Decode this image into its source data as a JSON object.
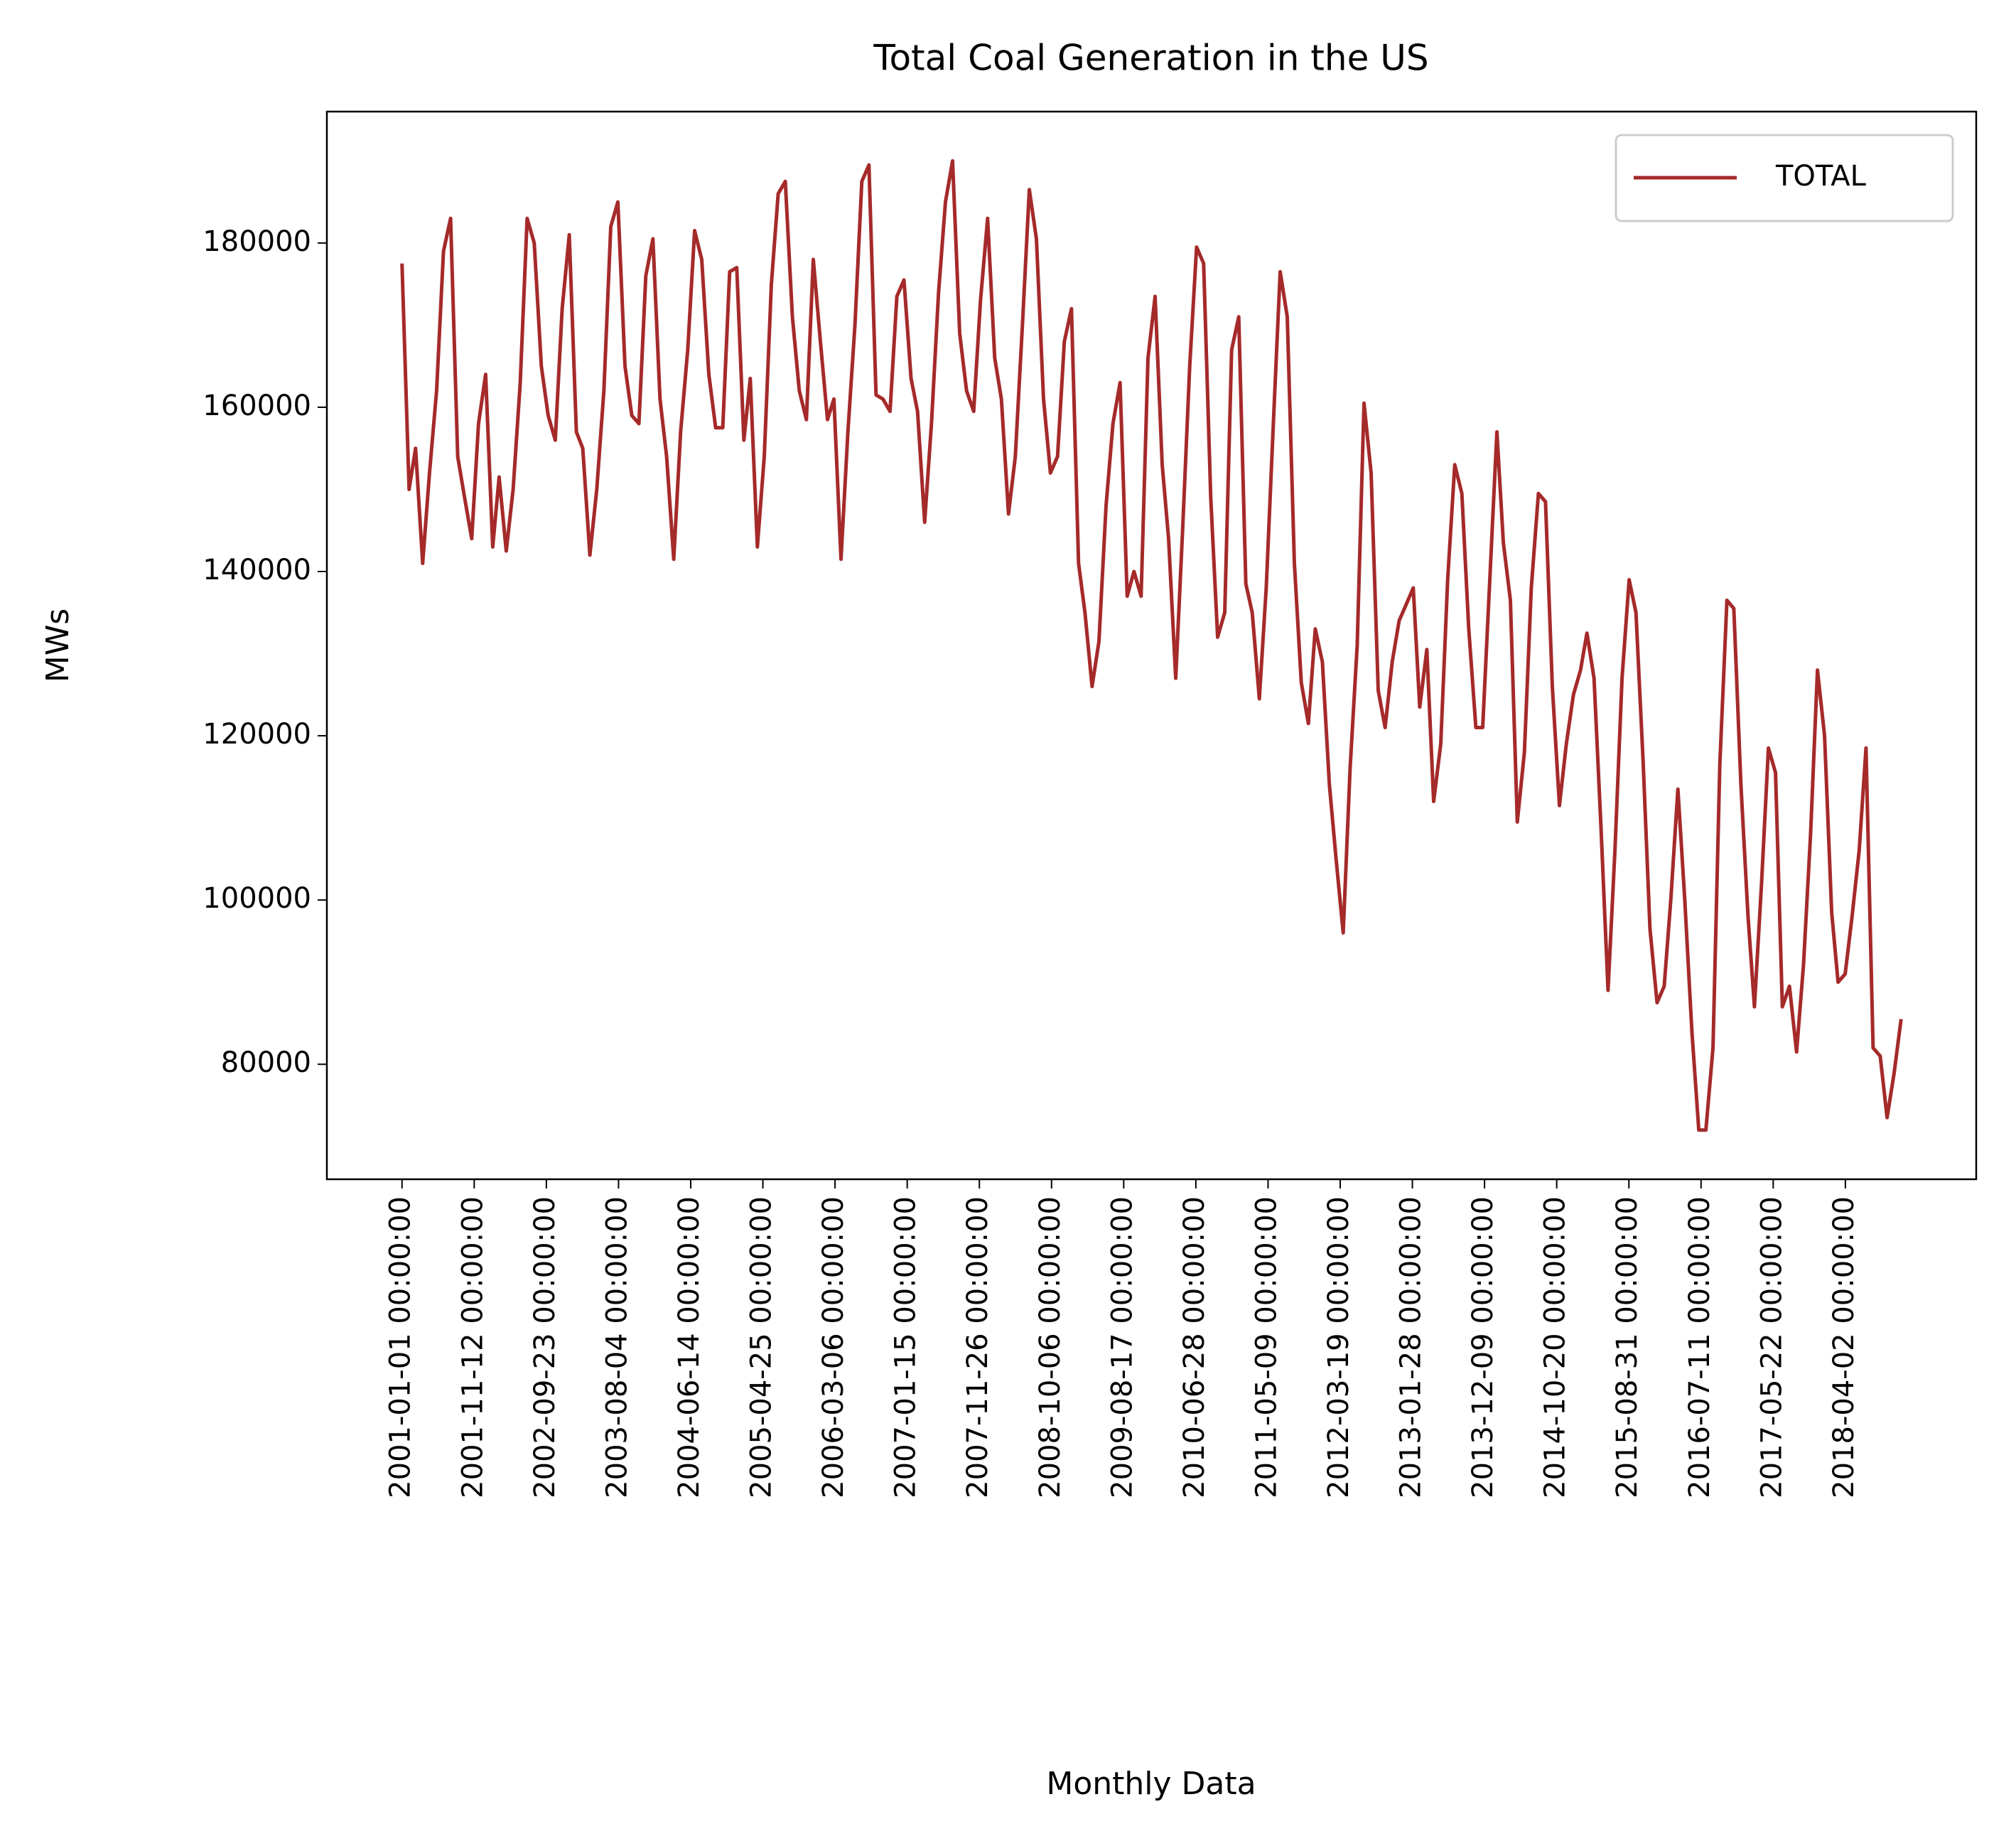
{
  "chart_data": {
    "type": "line",
    "title": "Total Coal Generation in the US",
    "xlabel": "Monthly Data",
    "ylabel": "MWs",
    "x": [
      "2001-01-01",
      "2001-02-01",
      "2001-03-01",
      "2001-04-01",
      "2001-05-01",
      "2001-06-01",
      "2001-07-01",
      "2001-08-01",
      "2001-09-01",
      "2001-10-01",
      "2001-11-01",
      "2001-12-01",
      "2002-01-01",
      "2002-02-01",
      "2002-03-01",
      "2002-04-01",
      "2002-05-01",
      "2002-06-01",
      "2002-07-01",
      "2002-08-01",
      "2002-09-01",
      "2002-10-01",
      "2002-11-01",
      "2002-12-01",
      "2003-01-01",
      "2003-02-01",
      "2003-03-01",
      "2003-04-01",
      "2003-05-01",
      "2003-06-01",
      "2003-07-01",
      "2003-08-01",
      "2003-09-01",
      "2003-10-01",
      "2003-11-01",
      "2003-12-01",
      "2004-01-01",
      "2004-02-01",
      "2004-03-01",
      "2004-04-01",
      "2004-05-01",
      "2004-06-01",
      "2004-07-01",
      "2004-08-01",
      "2004-09-01",
      "2004-10-01",
      "2004-11-01",
      "2004-12-01",
      "2005-01-01",
      "2005-02-01",
      "2005-03-01",
      "2005-04-01",
      "2005-05-01",
      "2005-06-01",
      "2005-07-01",
      "2005-08-01",
      "2005-09-01",
      "2005-10-01",
      "2005-11-01",
      "2005-12-01",
      "2006-01-01",
      "2006-02-01",
      "2006-03-01",
      "2006-04-01",
      "2006-05-01",
      "2006-06-01",
      "2006-07-01",
      "2006-08-01",
      "2006-09-01",
      "2006-10-01",
      "2006-11-01",
      "2006-12-01",
      "2007-01-01",
      "2007-02-01",
      "2007-03-01",
      "2007-04-01",
      "2007-05-01",
      "2007-06-01",
      "2007-07-01",
      "2007-08-01",
      "2007-09-01",
      "2007-10-01",
      "2007-11-01",
      "2007-12-01",
      "2008-01-01",
      "2008-02-01",
      "2008-03-01",
      "2008-04-01",
      "2008-05-01",
      "2008-06-01",
      "2008-07-01",
      "2008-08-01",
      "2008-09-01",
      "2008-10-01",
      "2008-11-01",
      "2008-12-01",
      "2009-01-01",
      "2009-02-01",
      "2009-03-01",
      "2009-04-01",
      "2009-05-01",
      "2009-06-01",
      "2009-07-01",
      "2009-08-01",
      "2009-09-01",
      "2009-10-01",
      "2009-11-01",
      "2009-12-01",
      "2010-01-01",
      "2010-02-01",
      "2010-03-01",
      "2010-04-01",
      "2010-05-01",
      "2010-06-01",
      "2010-07-01",
      "2010-08-01",
      "2010-09-01",
      "2010-10-01",
      "2010-11-01",
      "2010-12-01",
      "2011-01-01",
      "2011-02-01",
      "2011-03-01",
      "2011-04-01",
      "2011-05-01",
      "2011-06-01",
      "2011-07-01",
      "2011-08-01",
      "2011-09-01",
      "2011-10-01",
      "2011-11-01",
      "2011-12-01",
      "2012-01-01",
      "2012-02-01",
      "2012-03-01",
      "2012-04-01",
      "2012-05-01",
      "2012-06-01",
      "2012-07-01",
      "2012-08-01",
      "2012-09-01",
      "2012-10-01",
      "2012-11-01",
      "2012-12-01",
      "2013-01-01",
      "2013-02-01",
      "2013-03-01",
      "2013-04-01",
      "2013-05-01",
      "2013-06-01",
      "2013-07-01",
      "2013-08-01",
      "2013-09-01",
      "2013-10-01",
      "2013-11-01",
      "2013-12-01",
      "2014-01-01",
      "2014-02-01",
      "2014-03-01",
      "2014-04-01",
      "2014-05-01",
      "2014-06-01",
      "2014-07-01",
      "2014-08-01",
      "2014-09-01",
      "2014-10-01",
      "2014-11-01",
      "2014-12-01",
      "2015-01-01",
      "2015-02-01",
      "2015-03-01",
      "2015-04-01",
      "2015-05-01",
      "2015-06-01",
      "2015-07-01",
      "2015-08-01",
      "2015-09-01",
      "2015-10-01",
      "2015-11-01",
      "2015-12-01",
      "2016-01-01",
      "2016-02-01",
      "2016-03-01",
      "2016-04-01",
      "2016-05-01",
      "2016-06-01",
      "2016-07-01",
      "2016-08-01",
      "2016-09-01",
      "2016-10-01",
      "2016-11-01",
      "2016-12-01",
      "2017-01-01",
      "2017-02-01",
      "2017-03-01",
      "2017-04-01",
      "2017-05-01",
      "2017-06-01",
      "2017-07-01",
      "2017-08-01",
      "2017-09-01",
      "2017-10-01",
      "2017-11-01",
      "2017-12-01",
      "2018-01-01",
      "2018-02-01",
      "2018-03-01",
      "2018-04-01",
      "2018-05-01",
      "2018-06-01",
      "2018-07-01",
      "2018-08-01",
      "2018-09-01",
      "2018-10-01",
      "2018-11-01",
      "2018-12-01"
    ],
    "series": [
      {
        "name": "TOTAL",
        "color": "#a52a2a",
        "values": [
          177500,
          150000,
          155000,
          141000,
          152000,
          162000,
          179000,
          183000,
          154000,
          149000,
          144000,
          158000,
          164000,
          143000,
          151500,
          142500,
          150000,
          163000,
          183000,
          180000,
          165000,
          159000,
          156000,
          172000,
          181000,
          157000,
          155000,
          142000,
          150000,
          162000,
          182000,
          185000,
          165000,
          159000,
          158000,
          176000,
          180500,
          161000,
          154000,
          141500,
          157000,
          167000,
          181500,
          178000,
          164000,
          157500,
          157500,
          176500,
          177000,
          156000,
          163500,
          143000,
          154000,
          175000,
          186000,
          187500,
          171000,
          162000,
          158500,
          178000,
          168000,
          158500,
          161000,
          141500,
          157000,
          170000,
          187500,
          189500,
          161500,
          161000,
          159500,
          173500,
          175500,
          163500,
          159500,
          146000,
          158000,
          174000,
          185000,
          190000,
          169000,
          162000,
          159500,
          173000,
          183000,
          166000,
          161000,
          147000,
          154000,
          170000,
          186500,
          180500,
          161000,
          152000,
          154000,
          168000,
          172000,
          141000,
          135000,
          126000,
          131500,
          148000,
          158000,
          163000,
          137000,
          140000,
          137000,
          166000,
          173500,
          153000,
          144000,
          127000,
          145000,
          165000,
          179500,
          177500,
          149000,
          132000,
          135000,
          167000,
          171000,
          138500,
          135000,
          124500,
          138000,
          158000,
          176500,
          171000,
          141000,
          126500,
          121500,
          133000,
          129000,
          114000,
          105000,
          96000,
          116000,
          131000,
          160500,
          152000,
          125500,
          121000,
          129000,
          134000,
          136000,
          138000,
          123500,
          130500,
          112000,
          119000,
          139000,
          153000,
          149500,
          133000,
          121000,
          121000,
          139000,
          157000,
          143500,
          136500,
          109500,
          118000,
          138000,
          149500,
          148500,
          126000,
          111500,
          119000,
          125000,
          128000,
          132500,
          127000,
          109000,
          89000,
          106000,
          127000,
          139000,
          135000,
          117000,
          96500,
          87500,
          89500,
          100000,
          113500,
          100000,
          84000,
          72000,
          72000,
          82000,
          116500,
          136500,
          135500,
          114000,
          98000,
          87000,
          102000,
          118500,
          115500,
          87000,
          89500,
          81500,
          92000,
          108000,
          128000,
          120000,
          98500,
          90000,
          91000,
          98000,
          106000,
          118500,
          82000,
          81000,
          73500,
          79000,
          85500
        ]
      }
    ],
    "xlim": [
      "2000-02-08",
      "2019-10-25"
    ],
    "xticks": [
      {
        "value": "2001-01-01",
        "label": "2001-01-01 00:00:00"
      },
      {
        "value": "2001-11-12",
        "label": "2001-11-12 00:00:00"
      },
      {
        "value": "2002-09-23",
        "label": "2002-09-23 00:00:00"
      },
      {
        "value": "2003-08-04",
        "label": "2003-08-04 00:00:00"
      },
      {
        "value": "2004-06-14",
        "label": "2004-06-14 00:00:00"
      },
      {
        "value": "2005-04-25",
        "label": "2005-04-25 00:00:00"
      },
      {
        "value": "2006-03-06",
        "label": "2006-03-06 00:00:00"
      },
      {
        "value": "2007-01-15",
        "label": "2007-01-15 00:00:00"
      },
      {
        "value": "2007-11-26",
        "label": "2007-11-26 00:00:00"
      },
      {
        "value": "2008-10-06",
        "label": "2008-10-06 00:00:00"
      },
      {
        "value": "2009-08-17",
        "label": "2009-08-17 00:00:00"
      },
      {
        "value": "2010-06-28",
        "label": "2010-06-28 00:00:00"
      },
      {
        "value": "2011-05-09",
        "label": "2011-05-09 00:00:00"
      },
      {
        "value": "2012-03-19",
        "label": "2012-03-19 00:00:00"
      },
      {
        "value": "2013-01-28",
        "label": "2013-01-28 00:00:00"
      },
      {
        "value": "2013-12-09",
        "label": "2013-12-09 00:00:00"
      },
      {
        "value": "2014-10-20",
        "label": "2014-10-20 00:00:00"
      },
      {
        "value": "2015-08-31",
        "label": "2015-08-31 00:00:00"
      },
      {
        "value": "2016-07-11",
        "label": "2016-07-11 00:00:00"
      },
      {
        "value": "2017-05-22",
        "label": "2017-05-22 00:00:00"
      },
      {
        "value": "2018-04-02",
        "label": "2018-04-02 00:00:00"
      }
    ],
    "ylim": [
      66000,
      196000
    ],
    "yticks": [
      80000,
      100000,
      120000,
      140000,
      160000,
      180000
    ],
    "grid": false,
    "legend": "upper right"
  }
}
